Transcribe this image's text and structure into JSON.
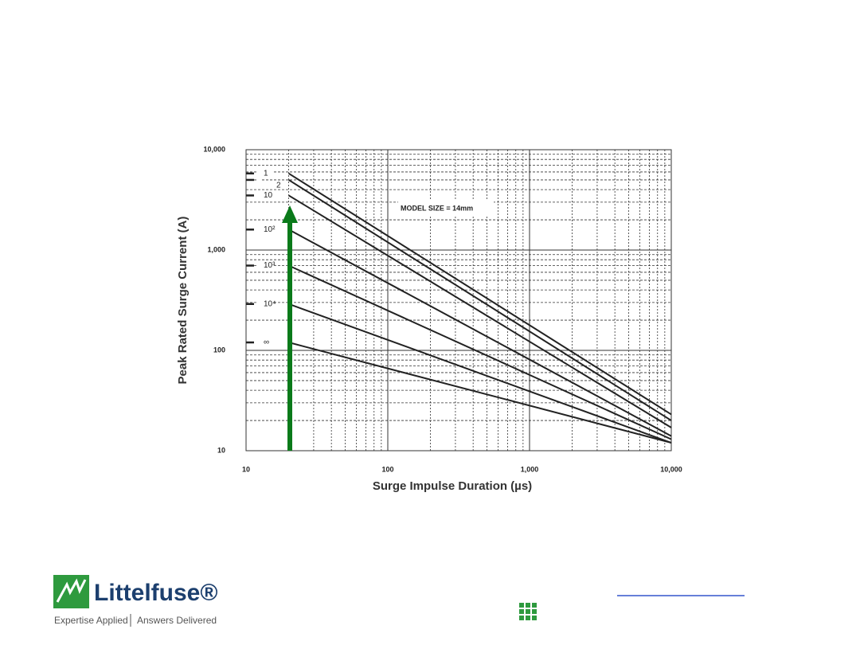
{
  "chart_data": {
    "type": "line",
    "y_label": "Peak Rated Surge Current (A)",
    "x_label": "Surge Impulse Duration (µs)",
    "annotation": "MODEL SIZE = 14mm",
    "x_scale": "log",
    "y_scale": "log",
    "grid": true,
    "xlim": [
      10,
      10000
    ],
    "ylim": [
      10,
      10000
    ],
    "xticks": [
      10,
      100,
      {
        "value": 1000,
        "label": "1,000"
      },
      {
        "value": 10000,
        "label": "10,000"
      }
    ],
    "yticks": [
      10,
      100,
      {
        "value": 1000,
        "label": "1,000"
      },
      {
        "value": 10000,
        "label": "10,000"
      }
    ],
    "x": [
      20,
      10000
    ],
    "series": [
      {
        "name": "1",
        "color": "#222222",
        "values": [
          5800,
          23
        ]
      },
      {
        "name": "2",
        "color": "#222222",
        "values": [
          5000,
          20
        ]
      },
      {
        "name": "10",
        "color": "#222222",
        "values": [
          3500,
          17
        ]
      },
      {
        "name": "10²",
        "color": "#222222",
        "values": [
          1600,
          14
        ]
      },
      {
        "name": "10³",
        "color": "#222222",
        "values": [
          700,
          13
        ]
      },
      {
        "name": "10⁴",
        "color": "#222222",
        "values": [
          290,
          12
        ]
      },
      {
        "name": "∞",
        "color": "#222222",
        "values": [
          120,
          12
        ]
      }
    ]
  },
  "footer": {
    "brand": "Littelfuse®",
    "tagline_left": "Expertise Applied",
    "tagline_right": "Answers Delivered"
  }
}
